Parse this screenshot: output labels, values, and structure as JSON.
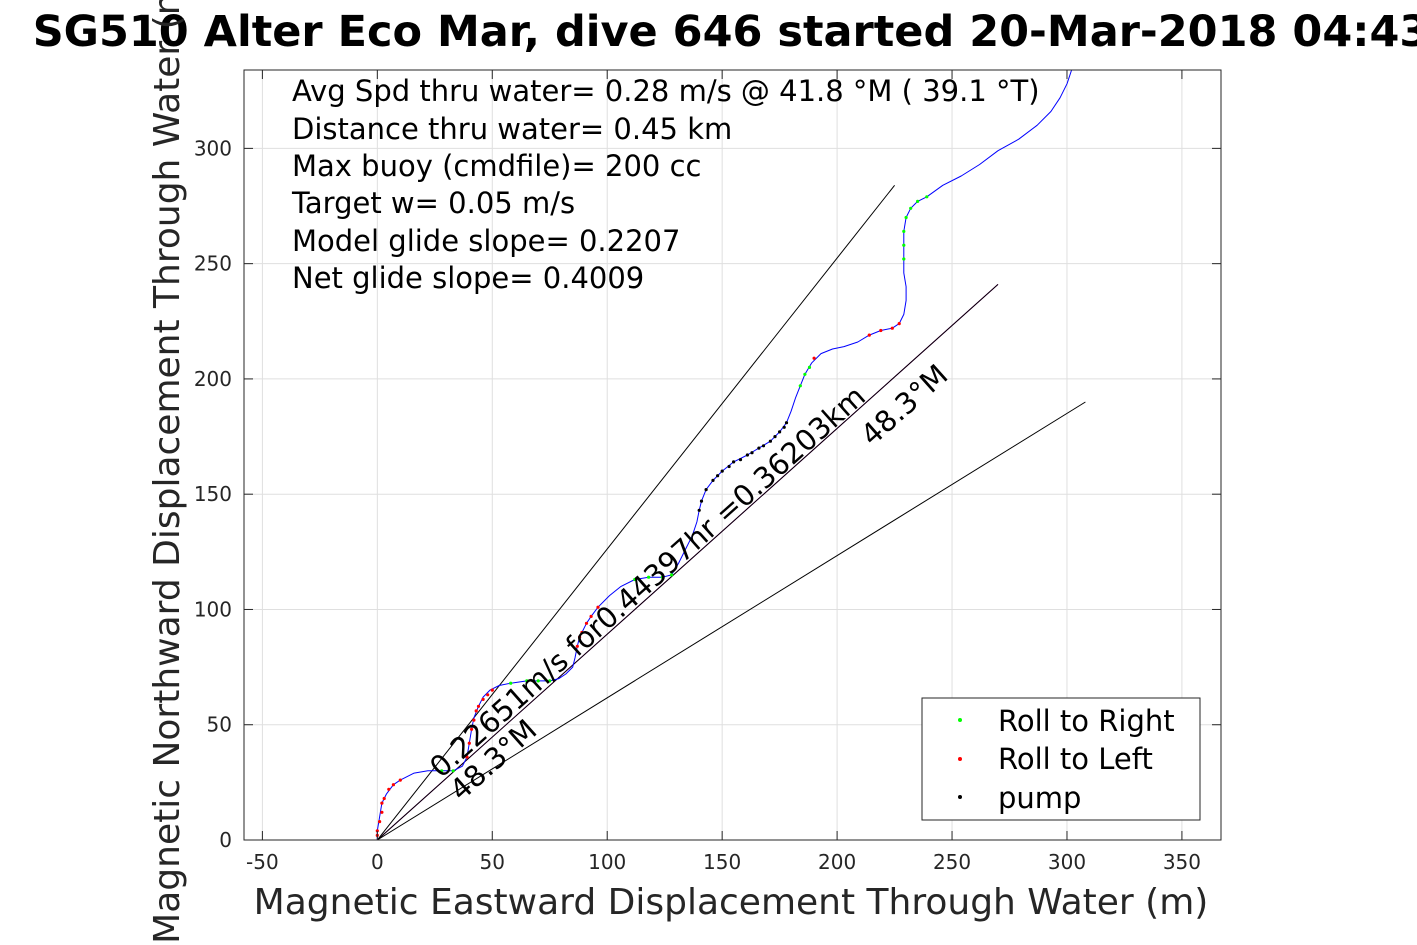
{
  "chart_data": {
    "type": "line",
    "title": "SG510 Alter Eco Mar, dive 646 started 20-Mar-2018 04:43",
    "xlabel": "Magnetic Eastward Displacement Through Water (m)",
    "ylabel": "Magnetic Northward Displacement Through Water (m)",
    "xlim": [
      -58,
      367
    ],
    "ylim": [
      0,
      334
    ],
    "xticks": [
      -50,
      0,
      50,
      100,
      150,
      200,
      250,
      300,
      350
    ],
    "yticks": [
      0,
      50,
      100,
      150,
      200,
      250,
      300
    ],
    "xtick_labels": [
      "-50",
      "0",
      "50",
      "100",
      "150",
      "200",
      "250",
      "300",
      "350"
    ],
    "ytick_labels": [
      "0",
      "50",
      "100",
      "150",
      "200",
      "250",
      "300"
    ],
    "grid": true,
    "info_lines": [
      "Avg Spd thru water=  0.28 m/s @  41.8 °M ( 39.1 °T)",
      "Distance thru water=  0.45 km",
      "Max buoy (cmdfile)= 200 cc",
      "Target w= 0.05 m/s",
      "Model glide slope= 0.2207",
      "Net glide slope= 0.4009"
    ],
    "annotations": {
      "main": "0.22651m/s for0.44397hr =0.36203km",
      "heading_upper": "48.3°M",
      "heading_lower": "48.3°M"
    },
    "legend": {
      "location": "bottom-right",
      "entries": [
        {
          "label": "Roll to Right",
          "color": "#00ff00"
        },
        {
          "label": "Roll to Left",
          "color": "#ff0000"
        },
        {
          "label": "pump",
          "color": "#000000"
        }
      ]
    },
    "series": [
      {
        "name": "track",
        "color": "#0000ff",
        "points": [
          [
            0,
            0
          ],
          [
            0,
            4
          ],
          [
            1,
            10
          ],
          [
            2,
            16
          ],
          [
            4,
            20
          ],
          [
            7,
            24
          ],
          [
            10,
            26
          ],
          [
            16,
            29
          ],
          [
            22,
            30
          ],
          [
            28,
            30
          ],
          [
            33,
            30
          ],
          [
            37,
            32
          ],
          [
            39,
            36
          ],
          [
            40,
            42
          ],
          [
            41,
            48
          ],
          [
            42,
            53
          ],
          [
            44,
            58
          ],
          [
            46,
            62
          ],
          [
            49,
            65
          ],
          [
            53,
            67
          ],
          [
            58,
            68
          ],
          [
            65,
            69
          ],
          [
            70,
            69
          ],
          [
            75,
            69
          ],
          [
            79,
            70
          ],
          [
            82,
            72
          ],
          [
            85,
            75
          ],
          [
            86,
            79
          ],
          [
            87,
            84
          ],
          [
            88,
            88
          ],
          [
            89,
            90
          ],
          [
            91,
            94
          ],
          [
            93,
            97
          ],
          [
            96,
            101
          ],
          [
            101,
            106
          ],
          [
            106,
            110
          ],
          [
            112,
            113
          ],
          [
            118,
            114
          ],
          [
            124,
            114
          ],
          [
            128,
            115
          ],
          [
            131,
            120
          ],
          [
            134,
            126
          ],
          [
            137,
            132
          ],
          [
            139,
            138
          ],
          [
            140,
            143
          ],
          [
            141,
            147
          ],
          [
            143,
            152
          ],
          [
            146,
            156
          ],
          [
            150,
            160
          ],
          [
            155,
            164
          ],
          [
            161,
            167
          ],
          [
            166,
            170
          ],
          [
            171,
            173
          ],
          [
            175,
            177
          ],
          [
            178,
            181
          ],
          [
            180,
            186
          ],
          [
            182,
            192
          ],
          [
            184,
            197
          ],
          [
            186,
            202
          ],
          [
            189,
            207
          ],
          [
            193,
            211
          ],
          [
            198,
            213
          ],
          [
            203,
            214
          ],
          [
            209,
            216
          ],
          [
            214,
            219
          ],
          [
            219,
            221
          ],
          [
            224,
            222
          ],
          [
            227,
            224
          ],
          [
            229,
            228
          ],
          [
            230,
            234
          ],
          [
            230,
            240
          ],
          [
            229,
            246
          ],
          [
            229,
            252
          ],
          [
            229,
            258
          ],
          [
            229,
            264
          ],
          [
            230,
            270
          ],
          [
            232,
            274
          ],
          [
            235,
            277
          ],
          [
            239,
            279
          ],
          [
            246,
            284
          ],
          [
            254,
            288
          ],
          [
            262,
            293
          ],
          [
            270,
            299
          ],
          [
            279,
            304
          ],
          [
            287,
            310
          ],
          [
            293,
            316
          ],
          [
            297,
            322
          ],
          [
            300,
            328
          ],
          [
            302,
            334
          ]
        ]
      },
      {
        "name": "net-heading",
        "color": "#cc00cc",
        "points": [
          [
            0,
            0
          ],
          [
            270,
            241
          ]
        ]
      },
      {
        "name": "bound-upper",
        "color": "#000000",
        "points": [
          [
            0,
            0
          ],
          [
            225,
            284
          ]
        ]
      },
      {
        "name": "bound-middle",
        "color": "#000000",
        "points": [
          [
            0,
            0
          ],
          [
            270,
            241
          ]
        ]
      },
      {
        "name": "bound-lower",
        "color": "#000000",
        "points": [
          [
            0,
            0
          ],
          [
            308,
            190
          ]
        ]
      }
    ],
    "markers": [
      {
        "name": "Roll to Left",
        "color": "#ff0000",
        "points": [
          [
            0,
            2
          ],
          [
            0,
            4
          ],
          [
            1,
            8
          ],
          [
            2,
            12
          ],
          [
            2,
            16
          ],
          [
            3,
            18
          ],
          [
            5,
            22
          ],
          [
            7,
            24
          ],
          [
            10,
            26
          ],
          [
            39,
            36
          ],
          [
            40,
            42
          ],
          [
            41,
            48
          ],
          [
            42,
            52
          ],
          [
            43,
            56
          ],
          [
            44,
            58
          ],
          [
            46,
            61
          ],
          [
            48,
            63
          ],
          [
            50,
            65
          ],
          [
            87,
            84
          ],
          [
            88,
            88
          ],
          [
            89,
            90
          ],
          [
            91,
            94
          ],
          [
            93,
            97
          ],
          [
            96,
            101
          ],
          [
            214,
            219
          ],
          [
            219,
            221
          ],
          [
            224,
            222
          ],
          [
            227,
            224
          ],
          [
            190,
            209
          ]
        ]
      },
      {
        "name": "Roll to Right",
        "color": "#00ff00",
        "points": [
          [
            28,
            30
          ],
          [
            33,
            30
          ],
          [
            58,
            68
          ],
          [
            65,
            69
          ],
          [
            70,
            69
          ],
          [
            75,
            69
          ],
          [
            112,
            113
          ],
          [
            118,
            114
          ],
          [
            124,
            114
          ],
          [
            128,
            115
          ],
          [
            184,
            197
          ],
          [
            186,
            202
          ],
          [
            188,
            205
          ],
          [
            229,
            252
          ],
          [
            229,
            258
          ],
          [
            229,
            264
          ],
          [
            230,
            270
          ],
          [
            232,
            274
          ],
          [
            235,
            277
          ],
          [
            239,
            279
          ]
        ]
      },
      {
        "name": "pump",
        "color": "#000000",
        "points": [
          [
            140,
            143
          ],
          [
            141,
            147
          ],
          [
            143,
            152
          ],
          [
            146,
            156
          ],
          [
            148,
            158
          ],
          [
            150,
            160
          ],
          [
            153,
            162
          ],
          [
            155,
            164
          ],
          [
            158,
            165
          ],
          [
            161,
            167
          ],
          [
            163,
            168
          ],
          [
            166,
            170
          ],
          [
            168,
            171
          ],
          [
            171,
            173
          ],
          [
            173,
            175
          ],
          [
            175,
            177
          ],
          [
            177,
            179
          ],
          [
            178,
            181
          ]
        ]
      }
    ]
  }
}
